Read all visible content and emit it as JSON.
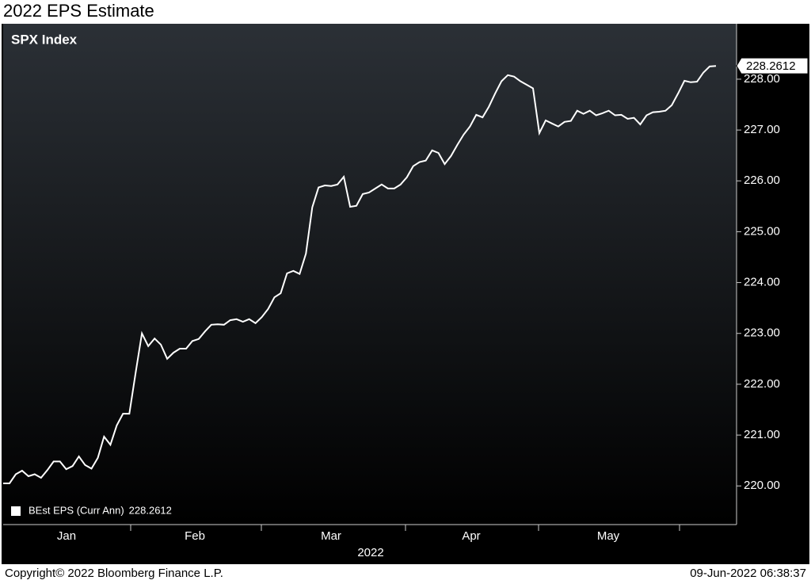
{
  "chart_data": {
    "type": "line",
    "title": "2022 EPS Estimate",
    "subtitle": "SPX Index",
    "x_month_labels": [
      "Jan",
      "Feb",
      "Mar",
      "Apr",
      "May"
    ],
    "x_year_label": "2022",
    "footer_left": "Copyright© 2022 Bloomberg Finance L.P.",
    "footer_right": "09-Jun-2022 06:38:37",
    "series": [
      {
        "name": "BEst EPS (Curr Ann)",
        "color": "#ffffff",
        "values": [
          220.05,
          220.05,
          220.23,
          220.3,
          220.19,
          220.23,
          220.16,
          220.31,
          220.48,
          220.48,
          220.33,
          220.39,
          220.58,
          220.41,
          220.34,
          220.55,
          220.97,
          220.81,
          221.19,
          221.42,
          221.42,
          222.23,
          223.0,
          222.75,
          222.9,
          222.78,
          222.5,
          222.62,
          222.7,
          222.7,
          222.85,
          222.89,
          223.04,
          223.17,
          223.18,
          223.17,
          223.26,
          223.28,
          223.23,
          223.28,
          223.2,
          223.32,
          223.48,
          223.71,
          223.79,
          224.18,
          224.23,
          224.17,
          224.57,
          225.48,
          225.87,
          225.91,
          225.9,
          225.93,
          226.08,
          225.49,
          225.51,
          225.74,
          225.77,
          225.85,
          225.93,
          225.85,
          225.85,
          225.93,
          226.07,
          226.29,
          226.37,
          226.4,
          226.6,
          226.55,
          226.33,
          226.49,
          226.71,
          226.91,
          227.07,
          227.3,
          227.25,
          227.46,
          227.72,
          227.96,
          228.08,
          228.05,
          227.96,
          227.89,
          227.82,
          226.94,
          227.19,
          227.13,
          227.07,
          227.16,
          227.18,
          227.38,
          227.32,
          227.38,
          227.29,
          227.33,
          227.38,
          227.29,
          227.3,
          227.22,
          227.24,
          227.11,
          227.29,
          227.35,
          227.36,
          227.38,
          227.49,
          227.72,
          227.97,
          227.94,
          227.95,
          228.13,
          228.25,
          228.2612
        ]
      }
    ],
    "ylim": [
      219.24,
      229.09
    ],
    "yticks": [
      {
        "value": 220,
        "label": "220.00"
      },
      {
        "value": 221,
        "label": "221.00"
      },
      {
        "value": 222,
        "label": "222.00"
      },
      {
        "value": 223,
        "label": "223.00"
      },
      {
        "value": 224,
        "label": "224.00"
      },
      {
        "value": 225,
        "label": "225.00"
      },
      {
        "value": 226,
        "label": "226.00"
      },
      {
        "value": 227,
        "label": "227.00"
      },
      {
        "value": 228,
        "label": "228.00"
      }
    ],
    "grid": false
  }
}
